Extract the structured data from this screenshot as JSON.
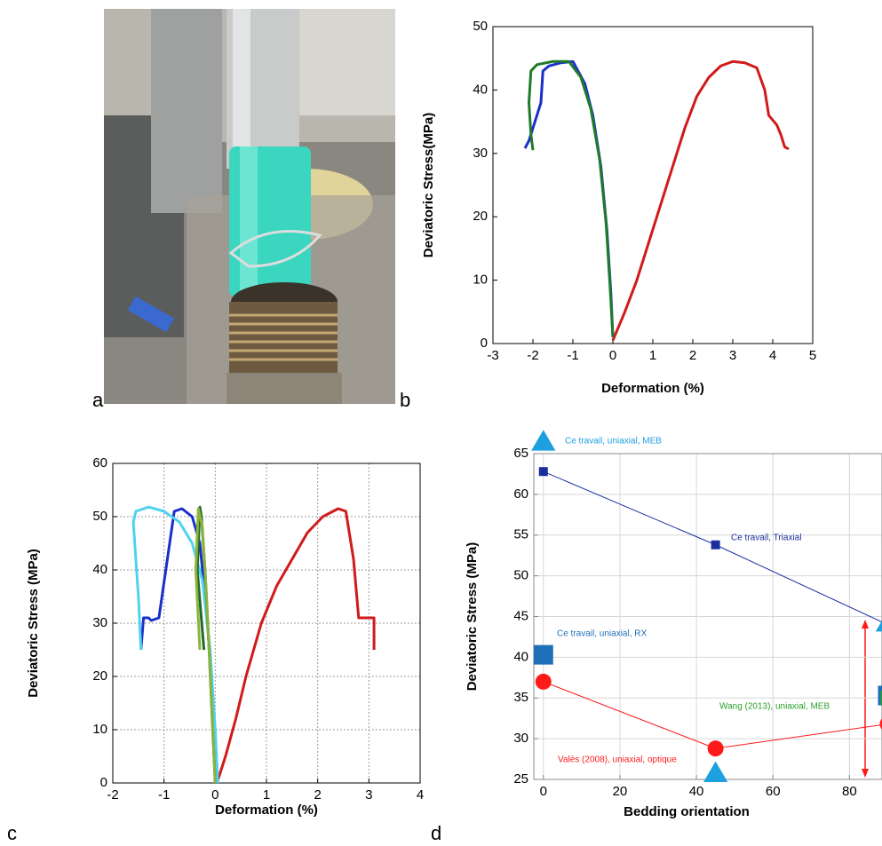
{
  "panel_labels": [
    "a",
    "b",
    "c",
    "d"
  ],
  "chart_data": [
    {
      "type": "line",
      "ylabel": "Deviatoric Stress(MPa)",
      "xlabel": "Deformation (%)",
      "xlim": [
        -3,
        5
      ],
      "xticks": [
        -3,
        -2,
        -1,
        0,
        1,
        2,
        3,
        4,
        5
      ],
      "ylim": [
        0,
        50
      ],
      "yticks": [
        0,
        10,
        20,
        30,
        40,
        50
      ],
      "grid": false,
      "series": [
        {
          "color": "#d11a1a",
          "x": [
            0,
            0.3,
            0.6,
            0.9,
            1.2,
            1.5,
            1.8,
            2.1,
            2.4,
            2.7,
            3.0,
            3.3,
            3.6,
            3.8,
            3.9,
            4.1,
            4.2,
            4.3,
            4.4
          ],
          "values": [
            0.5,
            5,
            10,
            16,
            22,
            28,
            34,
            39,
            42,
            43.8,
            44.5,
            44.3,
            43.5,
            40,
            36,
            34.5,
            33,
            31,
            30.7
          ]
        },
        {
          "color": "#1a2fc8",
          "x": [
            0,
            -0.05,
            -0.15,
            -0.3,
            -0.5,
            -0.7,
            -1.0,
            -1.3,
            -1.6,
            -1.75,
            -1.8,
            -1.95,
            -2.1,
            -2.2
          ],
          "values": [
            1,
            8,
            18,
            28,
            36,
            41,
            44.5,
            44.3,
            43.8,
            43,
            38,
            35,
            32,
            30.8
          ]
        },
        {
          "color": "#1f7a2a",
          "x": [
            0,
            -0.07,
            -0.17,
            -0.33,
            -0.55,
            -0.8,
            -1.1,
            -1.5,
            -1.9,
            -2.05,
            -2.1,
            -2.05,
            -2.0
          ],
          "values": [
            1,
            9,
            19,
            29,
            37,
            42,
            44.5,
            44.5,
            44,
            43,
            38,
            33,
            30.5
          ]
        }
      ]
    },
    {
      "type": "line",
      "ylabel": "Deviatoric Stress (MPa)",
      "xlabel": "Deformation (%)",
      "xlim": [
        -2,
        4
      ],
      "xticks": [
        -2,
        -1,
        0,
        1,
        2,
        3,
        4
      ],
      "ylim": [
        0,
        60
      ],
      "yticks": [
        0,
        10,
        20,
        30,
        40,
        50,
        60
      ],
      "grid": true,
      "series": [
        {
          "color": "#d11a1a",
          "x": [
            0.05,
            0.2,
            0.4,
            0.6,
            0.9,
            1.2,
            1.5,
            1.8,
            2.1,
            2.4,
            2.55,
            2.7,
            2.8,
            3.1,
            3.1
          ],
          "values": [
            0.5,
            5,
            12,
            20,
            30,
            37,
            42,
            47,
            50,
            51.5,
            51,
            42,
            31,
            31,
            25
          ]
        },
        {
          "color": "#1a2fc8",
          "x": [
            0.05,
            0,
            -0.05,
            -0.15,
            -0.3,
            -0.45,
            -0.65,
            -0.8,
            -1.1,
            -1.25,
            -1.3,
            -1.4,
            -1.45
          ],
          "values": [
            0,
            5,
            15,
            30,
            45,
            50,
            51.5,
            51,
            31,
            30.5,
            31,
            31,
            25
          ]
        },
        {
          "color": "#4fd2f0",
          "x": [
            0.05,
            0,
            -0.1,
            -0.25,
            -0.45,
            -0.7,
            -1.0,
            -1.3,
            -1.55,
            -1.6,
            -1.5,
            -1.45
          ],
          "values": [
            0,
            10,
            25,
            38,
            45,
            49,
            51,
            51.8,
            51,
            49,
            35,
            25
          ]
        },
        {
          "color": "#1f6a2a",
          "x": [
            0,
            -0.05,
            -0.12,
            -0.2,
            -0.27,
            -0.3,
            -0.35,
            -0.22
          ],
          "values": [
            0,
            10,
            25,
            40,
            50,
            51.8,
            40,
            25
          ]
        },
        {
          "color": "#8cb43c",
          "x": [
            0,
            -0.07,
            -0.17,
            -0.25,
            -0.33,
            -0.38,
            -0.3
          ],
          "values": [
            0,
            15,
            35,
            48,
            51.5,
            40,
            25
          ]
        }
      ]
    },
    {
      "type": "scatter",
      "ylabel": "Deviatoric Stress (MPa)",
      "xlabel": "Bedding orientation",
      "xlim": [
        -2.5,
        88.5
      ],
      "xticks": [
        0,
        20,
        40,
        60,
        80
      ],
      "ylim": [
        25,
        65
      ],
      "yticks": [
        25,
        30,
        35,
        40,
        45,
        50,
        55,
        60,
        65
      ],
      "grid": true,
      "series": [
        {
          "name": "Ce travail, uniaxial, MEB",
          "color": "#1e9fe0",
          "marker": "triangle",
          "line": false,
          "x": [
            0,
            45,
            90
          ],
          "values": [
            66.5,
            25.8,
            44.3
          ]
        },
        {
          "name": "Ce travail, Triaxial",
          "color": "#1a2f9e",
          "marker": "square",
          "line": true,
          "x": [
            0,
            45,
            90
          ],
          "values": [
            62.8,
            53.8,
            44
          ]
        },
        {
          "name": "Ce travail, uniaxial, RX",
          "color": "#1e6fb8",
          "marker": "square",
          "line": false,
          "x": [
            0,
            90
          ],
          "values": [
            40.3,
            35.3
          ]
        },
        {
          "name": "Wang (2013), uniaxial, MEB",
          "color": "#2ca02c",
          "marker": "square",
          "line": false,
          "x": [
            90
          ],
          "values": [
            35
          ]
        },
        {
          "name": "Valès (2008), uniaxial, optique",
          "color": "#ff1a1a",
          "marker": "circle",
          "line": true,
          "x": [
            0,
            45,
            90
          ],
          "values": [
            37,
            28.8,
            31.8
          ]
        }
      ]
    }
  ]
}
